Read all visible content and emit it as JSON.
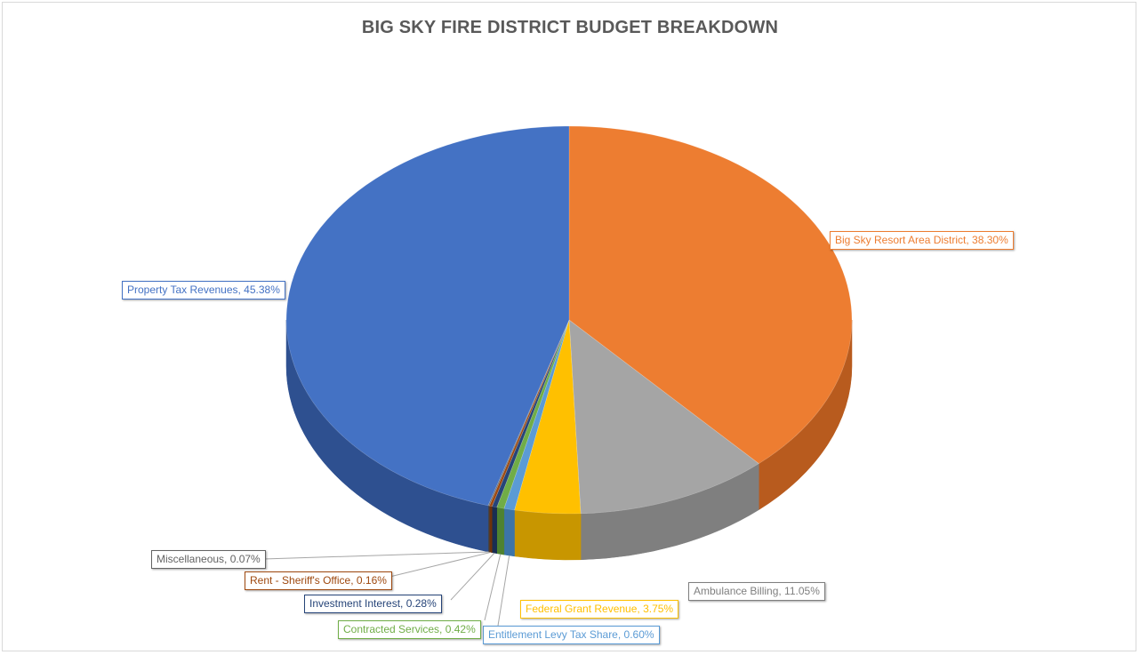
{
  "chart_data": {
    "type": "pie",
    "title": "BIG SKY FIRE DISTRICT BUDGET BREAKDOWN",
    "slices": [
      {
        "name": "Big Sky Resort Area District",
        "value": 38.3,
        "label": "Big Sky Resort Area District, 38.30%",
        "color": "#ED7D31",
        "side": "#B85B1E",
        "labelColor": "#ED7D31"
      },
      {
        "name": "Ambulance Billing",
        "value": 11.05,
        "label": "Ambulance Billing, 11.05%",
        "color": "#A5A5A5",
        "side": "#7F7F7F",
        "labelColor": "#7F7F7F"
      },
      {
        "name": "Federal Grant Revenue",
        "value": 3.75,
        "label": "Federal Grant Revenue, 3.75%",
        "color": "#FFC000",
        "side": "#C89600",
        "labelColor": "#FFC000"
      },
      {
        "name": "Entitlement Levy Tax Share",
        "value": 0.6,
        "label": "Entitlement Levy Tax Share, 0.60%",
        "color": "#5B9BD5",
        "side": "#3C74A8",
        "labelColor": "#5B9BD5"
      },
      {
        "name": "Contracted Services",
        "value": 0.42,
        "label": "Contracted Services, 0.42%",
        "color": "#70AD47",
        "side": "#4E8230",
        "labelColor": "#70AD47"
      },
      {
        "name": "Investment Interest",
        "value": 0.28,
        "label": "Investment Interest, 0.28%",
        "color": "#264478",
        "side": "#182D52",
        "labelColor": "#264478"
      },
      {
        "name": "Rent - Sheriff's Office",
        "value": 0.16,
        "label": "Rent - Sheriff's Office, 0.16%",
        "color": "#9E480E",
        "side": "#6E3109",
        "labelColor": "#9E480E"
      },
      {
        "name": "Miscellaneous",
        "value": 0.07,
        "label": "Miscellaneous, 0.07%",
        "color": "#636363",
        "side": "#444444",
        "labelColor": "#636363"
      },
      {
        "name": "Property Tax Revenues",
        "value": 45.38,
        "label": "Property Tax Revenues, 45.38%",
        "color": "#4472C4",
        "side": "#2E5090",
        "labelColor": "#4472C4"
      }
    ],
    "legend": "none",
    "view": "3d"
  }
}
